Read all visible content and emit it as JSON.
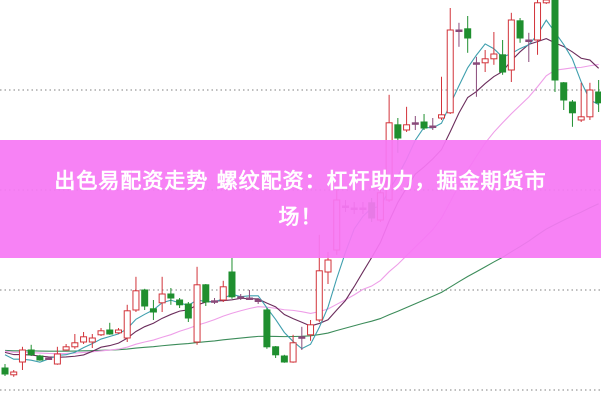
{
  "headline": {
    "line1": "出色易配资走势 螺纹配资：杠杆助力，掘金期货市",
    "line2": "场！"
  },
  "colors": {
    "banner": "#f678f4",
    "up": "#d2333a",
    "down": "#1f8f2f",
    "ma_fast": "#3f9fae",
    "ma_mid": "#6b2d5c",
    "ma_slow": "#ee9ee8",
    "ma_long": "#3c8c5a",
    "grid": "#999999"
  },
  "chart_data": {
    "type": "candlestick",
    "title": "",
    "xlabel": "",
    "ylabel": "",
    "ylim": [
      0,
      100
    ],
    "grid": "dotted horizontal",
    "gridlines": [
      2.5,
      27.5,
      52.5,
      77.5
    ],
    "moving_averages": [
      5,
      10,
      20,
      60
    ],
    "ohlc": [
      [
        8,
        9,
        6,
        6.5
      ],
      [
        6.3,
        7.5,
        5.8,
        7
      ],
      [
        9.5,
        13.3,
        7.5,
        12.5
      ],
      [
        12.5,
        13.8,
        11,
        11.3
      ],
      [
        11,
        11.3,
        9.8,
        10
      ],
      [
        10.5,
        10.8,
        10.2,
        10.5
      ],
      [
        9,
        13.3,
        8.8,
        11.5
      ],
      [
        12.5,
        14,
        12.3,
        13.3
      ],
      [
        13.3,
        16.5,
        12.8,
        14.3
      ],
      [
        14.5,
        17,
        14,
        15.8
      ],
      [
        14.5,
        16.5,
        13,
        15.5
      ],
      [
        16.3,
        18,
        16,
        17.3
      ],
      [
        17.5,
        19.3,
        16.3,
        16.5
      ],
      [
        16.8,
        18,
        16.5,
        17.5
      ],
      [
        15.5,
        23.8,
        14.5,
        22.3
      ],
      [
        22.5,
        30.8,
        22,
        27.3
      ],
      [
        27.5,
        27.8,
        22.5,
        23.5
      ],
      [
        22.8,
        25,
        20,
        22
      ],
      [
        24.3,
        30.8,
        22,
        26.5
      ],
      [
        26.5,
        28,
        23.8,
        25.5
      ],
      [
        25,
        25.5,
        23,
        23.8
      ],
      [
        24,
        24.5,
        19.5,
        20.5
      ],
      [
        14.5,
        33.3,
        13.8,
        28.8
      ],
      [
        28.8,
        29,
        23.5,
        24.5
      ],
      [
        24.5,
        25.5,
        24,
        24.8
      ],
      [
        25,
        29.8,
        24.5,
        28.3
      ],
      [
        32,
        35.5,
        25.3,
        25.8
      ],
      [
        25.8,
        26.5,
        25,
        25.8
      ],
      [
        25.5,
        27.5,
        25,
        25.5
      ],
      [
        25,
        25.5,
        24,
        24.8
      ],
      [
        22.5,
        23,
        12.8,
        13.3
      ],
      [
        13.3,
        13.5,
        10.5,
        11.3
      ],
      [
        11,
        11.3,
        9.3,
        9.5
      ],
      [
        9.5,
        16.3,
        9.3,
        14.3
      ],
      [
        15.8,
        18.3,
        12.5,
        15.8
      ],
      [
        16.3,
        20,
        14.8,
        18.8
      ],
      [
        20,
        41.3,
        19.5,
        32.3
      ],
      [
        32,
        37,
        29,
        35
      ],
      [
        37.5,
        52.5,
        36.3,
        50
      ],
      [
        48.5,
        50,
        47,
        48.5
      ],
      [
        48,
        49.5,
        46.5,
        48
      ],
      [
        48,
        49.5,
        46.5,
        48
      ],
      [
        49.3,
        50.5,
        44.5,
        45.5
      ],
      [
        45,
        53.8,
        44.5,
        51.8
      ],
      [
        50,
        76.3,
        49.5,
        69.3
      ],
      [
        68.8,
        70.5,
        61.8,
        65.5
      ],
      [
        67.5,
        73.3,
        67,
        68.8
      ],
      [
        69.3,
        71,
        67.5,
        69.3
      ],
      [
        69.5,
        71.5,
        67.5,
        68
      ],
      [
        68.5,
        70.5,
        67.5,
        68.5
      ],
      [
        70.5,
        80.8,
        70,
        71.3
      ],
      [
        71.8,
        98,
        71.5,
        92.5
      ],
      [
        92.5,
        94.3,
        88.3,
        92.5
      ],
      [
        92.8,
        96,
        86.8,
        90.5
      ],
      [
        84.3,
        85.8,
        75.8,
        84.3
      ],
      [
        84.3,
        87.5,
        82,
        85.3
      ],
      [
        85.3,
        92,
        83.8,
        86.5
      ],
      [
        86.3,
        90,
        81.3,
        82
      ],
      [
        82.5,
        96.8,
        79.5,
        95
      ],
      [
        94.8,
        95.5,
        89.3,
        90.5
      ],
      [
        90,
        91.8,
        84.5,
        90
      ],
      [
        90,
        100,
        86.3,
        99.3
      ],
      [
        99.3,
        100,
        99,
        100
      ],
      [
        100,
        100,
        77,
        80
      ],
      [
        79.3,
        79.5,
        72.5,
        75
      ],
      [
        74.5,
        75,
        68.3,
        71.8
      ],
      [
        70,
        79.3,
        69.5,
        70.8
      ],
      [
        70.8,
        79.3,
        70,
        77.5
      ],
      [
        77,
        80,
        72,
        74.3
      ]
    ]
  }
}
